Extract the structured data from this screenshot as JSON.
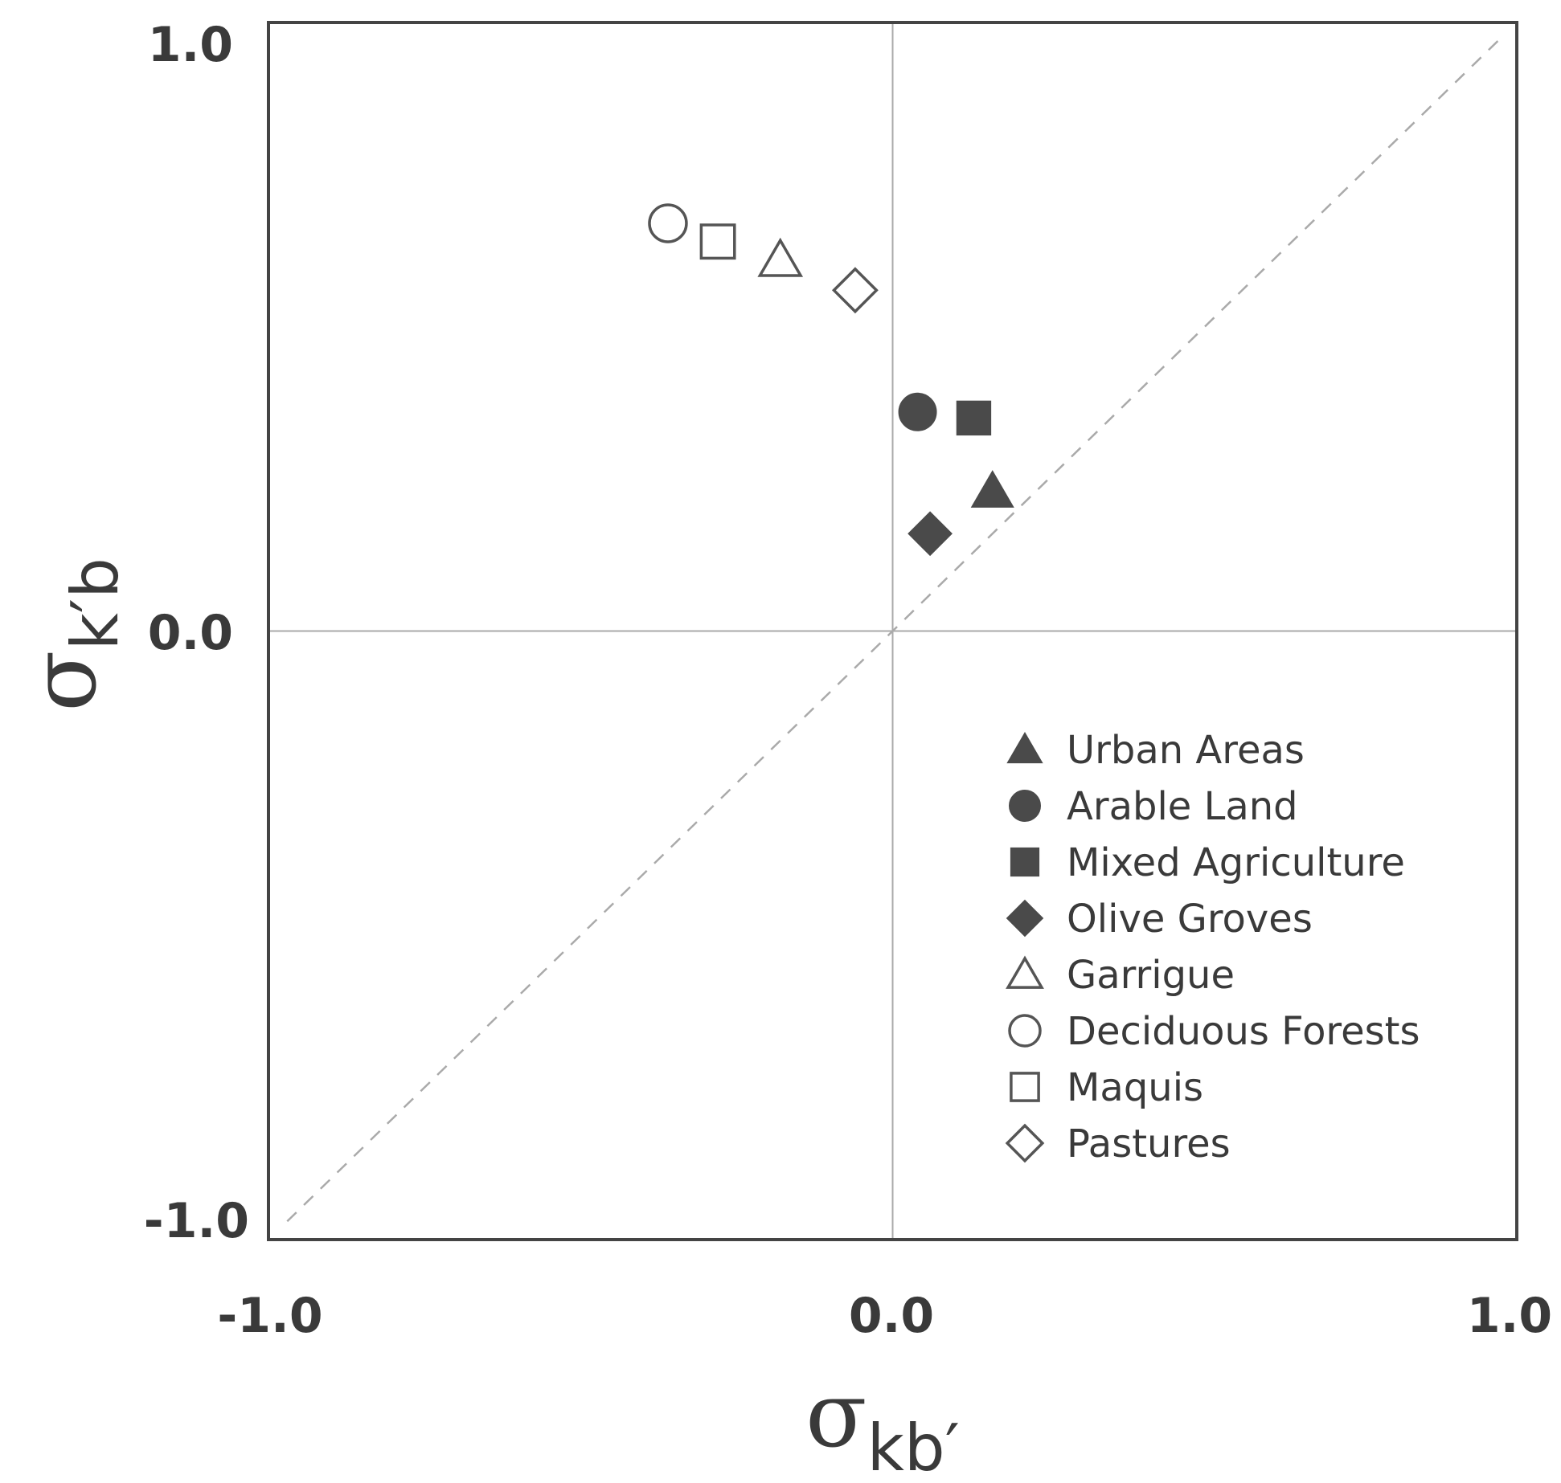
{
  "chart_data": {
    "type": "scatter",
    "xlim": [
      -1.0,
      1.0
    ],
    "ylim": [
      -1.0,
      1.0
    ],
    "x_ticks": [
      "-1.0",
      "0.0",
      "1.0"
    ],
    "y_ticks": [
      "1.0",
      "0.0",
      "-1.0"
    ],
    "xlabel": {
      "symbol": "σ",
      "subscript": "kb′"
    },
    "ylabel": {
      "symbol": "σ",
      "subscript": "k′b"
    },
    "reference_line": "y = x",
    "legend_position": "lower-right",
    "colors": {
      "filled": "#4a4a4a",
      "outline": "#555555",
      "frame": "#444444",
      "guide": "#aaaaaa"
    },
    "series": [
      {
        "name": "Urban Areas",
        "marker": "triangle",
        "filled": true,
        "x": 0.16,
        "y": 0.23
      },
      {
        "name": "Arable Land",
        "marker": "circle",
        "filled": true,
        "x": 0.04,
        "y": 0.36
      },
      {
        "name": "Mixed Agriculture",
        "marker": "square",
        "filled": true,
        "x": 0.13,
        "y": 0.35
      },
      {
        "name": "Olive Groves",
        "marker": "diamond",
        "filled": true,
        "x": 0.06,
        "y": 0.16
      },
      {
        "name": "Garrigue",
        "marker": "triangle",
        "filled": false,
        "x": -0.18,
        "y": 0.61
      },
      {
        "name": "Deciduous Forests",
        "marker": "circle",
        "filled": false,
        "x": -0.36,
        "y": 0.67
      },
      {
        "name": "Maquis",
        "marker": "square",
        "filled": false,
        "x": -0.28,
        "y": 0.64
      },
      {
        "name": "Pastures",
        "marker": "diamond",
        "filled": false,
        "x": -0.06,
        "y": 0.56
      }
    ]
  }
}
